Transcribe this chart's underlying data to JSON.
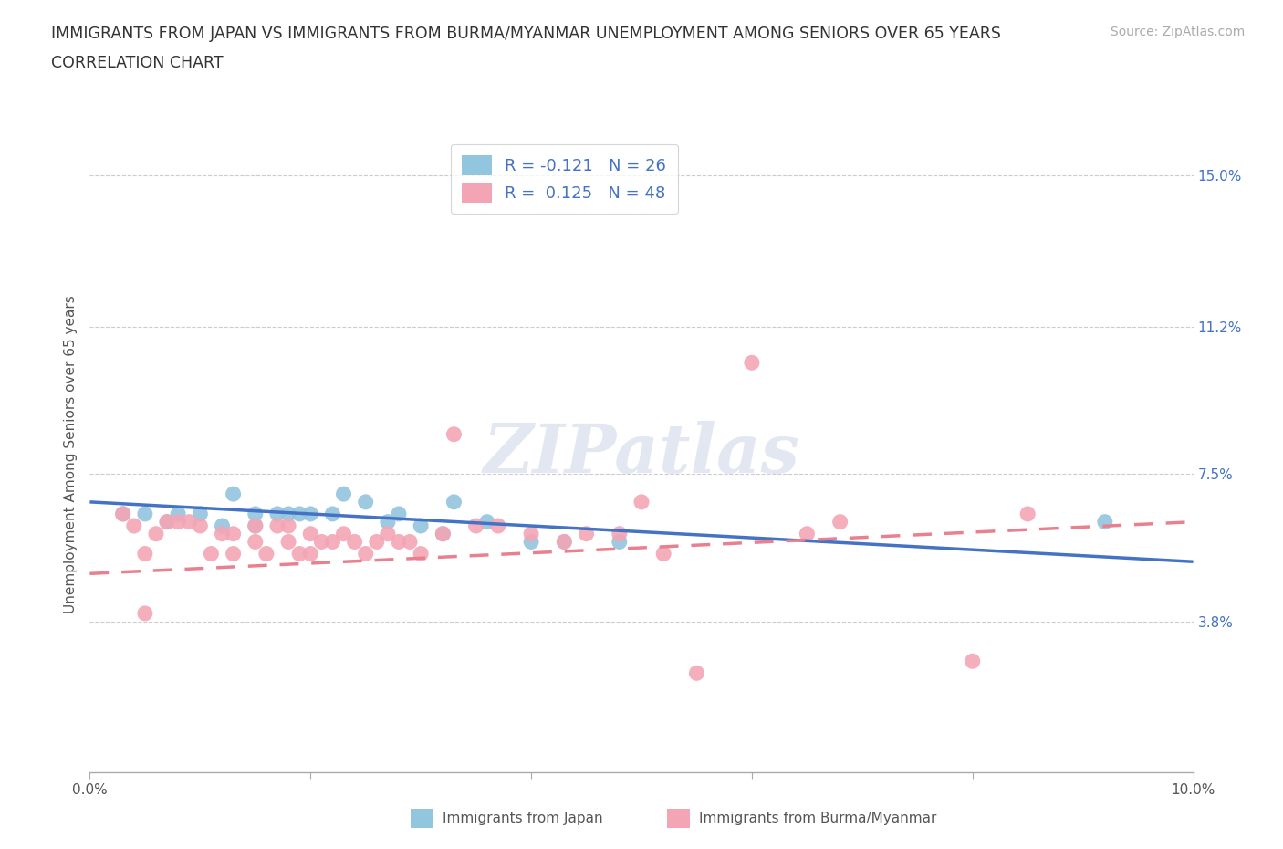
{
  "title_line1": "IMMIGRANTS FROM JAPAN VS IMMIGRANTS FROM BURMA/MYANMAR UNEMPLOYMENT AMONG SENIORS OVER 65 YEARS",
  "title_line2": "CORRELATION CHART",
  "source": "Source: ZipAtlas.com",
  "ylabel": "Unemployment Among Seniors over 65 years",
  "xlim": [
    0.0,
    0.1
  ],
  "ylim": [
    0.0,
    0.16
  ],
  "yticks": [
    0.038,
    0.075,
    0.112,
    0.15
  ],
  "ytick_labels": [
    "3.8%",
    "7.5%",
    "11.2%",
    "15.0%"
  ],
  "xticks": [
    0.0,
    0.02,
    0.04,
    0.06,
    0.08,
    0.1
  ],
  "xtick_labels": [
    "0.0%",
    "",
    "",
    "",
    "",
    "10.0%"
  ],
  "japan_color": "#92C5DE",
  "burma_color": "#F4A5B5",
  "japan_line_color": "#4472C4",
  "burma_line_color": "#E8808F",
  "watermark_text": "ZIPatlas",
  "japan_scatter_x": [
    0.003,
    0.005,
    0.007,
    0.008,
    0.01,
    0.012,
    0.013,
    0.015,
    0.015,
    0.017,
    0.018,
    0.019,
    0.02,
    0.022,
    0.023,
    0.025,
    0.027,
    0.028,
    0.03,
    0.032,
    0.033,
    0.036,
    0.04,
    0.043,
    0.048,
    0.092
  ],
  "japan_scatter_y": [
    0.065,
    0.065,
    0.063,
    0.065,
    0.065,
    0.062,
    0.07,
    0.065,
    0.062,
    0.065,
    0.065,
    0.065,
    0.065,
    0.065,
    0.07,
    0.068,
    0.063,
    0.065,
    0.062,
    0.06,
    0.068,
    0.063,
    0.058,
    0.058,
    0.058,
    0.063
  ],
  "burma_scatter_x": [
    0.003,
    0.004,
    0.005,
    0.005,
    0.006,
    0.007,
    0.008,
    0.009,
    0.01,
    0.011,
    0.012,
    0.013,
    0.013,
    0.015,
    0.015,
    0.016,
    0.017,
    0.018,
    0.018,
    0.019,
    0.02,
    0.02,
    0.021,
    0.022,
    0.023,
    0.024,
    0.025,
    0.026,
    0.027,
    0.028,
    0.029,
    0.03,
    0.032,
    0.033,
    0.035,
    0.037,
    0.04,
    0.043,
    0.045,
    0.048,
    0.05,
    0.052,
    0.055,
    0.06,
    0.065,
    0.068,
    0.08,
    0.085
  ],
  "burma_scatter_y": [
    0.065,
    0.062,
    0.055,
    0.04,
    0.06,
    0.063,
    0.063,
    0.063,
    0.062,
    0.055,
    0.06,
    0.06,
    0.055,
    0.062,
    0.058,
    0.055,
    0.062,
    0.062,
    0.058,
    0.055,
    0.06,
    0.055,
    0.058,
    0.058,
    0.06,
    0.058,
    0.055,
    0.058,
    0.06,
    0.058,
    0.058,
    0.055,
    0.06,
    0.085,
    0.062,
    0.062,
    0.06,
    0.058,
    0.06,
    0.06,
    0.068,
    0.055,
    0.025,
    0.103,
    0.06,
    0.063,
    0.028,
    0.065
  ],
  "japan_trend_x": [
    0.0,
    0.1
  ],
  "japan_trend_y": [
    0.068,
    0.053
  ],
  "burma_trend_x": [
    0.0,
    0.1
  ],
  "burma_trend_y": [
    0.05,
    0.063
  ]
}
